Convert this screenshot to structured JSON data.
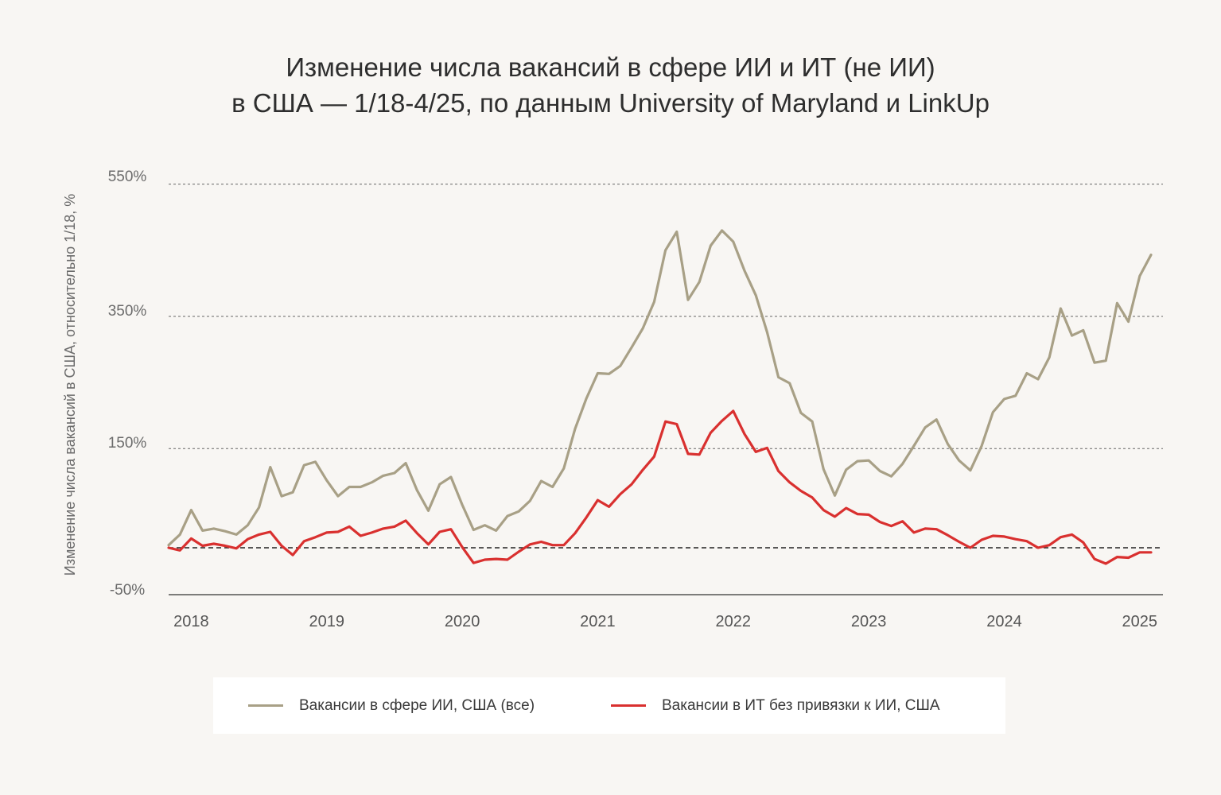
{
  "title": {
    "line1": "Изменение числа вакансий в сфере ИИ и ИТ (не ИИ)",
    "line2": "в США — 1/18-4/25, по данным University of Maryland и LinkUp"
  },
  "legend": {
    "ai": "Вакансии в сфере ИИ, США (все)",
    "it": "Вакансии в ИТ без привязки к ИИ, США"
  },
  "colors": {
    "background": "#f8f6f3",
    "ai": "#a8a086",
    "it": "#d9302f",
    "grid": "#555555",
    "tick_text": "#6b6b6b"
  },
  "chart_data": {
    "type": "line",
    "title": "Изменение числа вакансий в сфере ИИ и ИТ (не ИИ) в США — 1/18-4/25, по данным University of Maryland и LinkUp",
    "ylabel": "Изменение числа вакансий в США, относительно 1/18, %",
    "xlabel": "",
    "x_start": "2018-01",
    "x_end": "2025-04",
    "x_ticks": [
      "2018",
      "2019",
      "2020",
      "2021",
      "2022",
      "2023",
      "2024",
      "2025"
    ],
    "y_ticks": [
      "550%",
      "350%",
      "150%",
      "-50%"
    ],
    "y_tick_values": [
      550,
      350,
      150,
      -50
    ],
    "ylim": [
      -50,
      560
    ],
    "reference_line": 0,
    "grid": "horizontal dotted at 150, 350, 550",
    "legend_position": "bottom",
    "series": [
      {
        "name": "Вакансии в сфере ИИ, США (все)",
        "color": "#a8a086",
        "values": [
          4,
          20,
          57,
          26,
          29,
          25,
          20,
          34,
          61,
          122,
          78,
          84,
          125,
          130,
          102,
          78,
          92,
          92,
          99,
          109,
          113,
          128,
          87,
          56,
          96,
          107,
          65,
          27,
          34,
          26,
          48,
          55,
          71,
          101,
          92,
          120,
          180,
          226,
          264,
          263,
          275,
          303,
          332,
          372,
          450,
          478,
          375,
          402,
          457,
          480,
          463,
          419,
          382,
          326,
          258,
          249,
          204,
          191,
          119,
          79,
          118,
          131,
          132,
          116,
          108,
          127,
          154,
          182,
          194,
          157,
          132,
          117,
          154,
          205,
          225,
          230,
          264,
          255,
          288,
          362,
          321,
          329,
          280,
          283,
          370,
          342,
          411,
          443
        ]
      },
      {
        "name": "Вакансии в ИТ без привязки к ИИ, США",
        "color": "#d9302f",
        "values": [
          0,
          -4,
          14,
          3,
          6,
          3,
          -1,
          13,
          20,
          24,
          3,
          -11,
          10,
          16,
          23,
          24,
          32,
          18,
          23,
          29,
          32,
          41,
          22,
          5,
          24,
          28,
          1,
          -23,
          -18,
          -17,
          -18,
          -6,
          5,
          9,
          4,
          4,
          22,
          46,
          72,
          62,
          81,
          96,
          118,
          138,
          191,
          187,
          142,
          141,
          174,
          192,
          207,
          172,
          145,
          151,
          116,
          99,
          86,
          76,
          57,
          47,
          60,
          51,
          50,
          39,
          33,
          40,
          23,
          29,
          28,
          19,
          9,
          0,
          12,
          18,
          17,
          13,
          10,
          0,
          4,
          16,
          20,
          8,
          -17,
          -24,
          -14,
          -15,
          -7,
          -7
        ]
      }
    ]
  }
}
